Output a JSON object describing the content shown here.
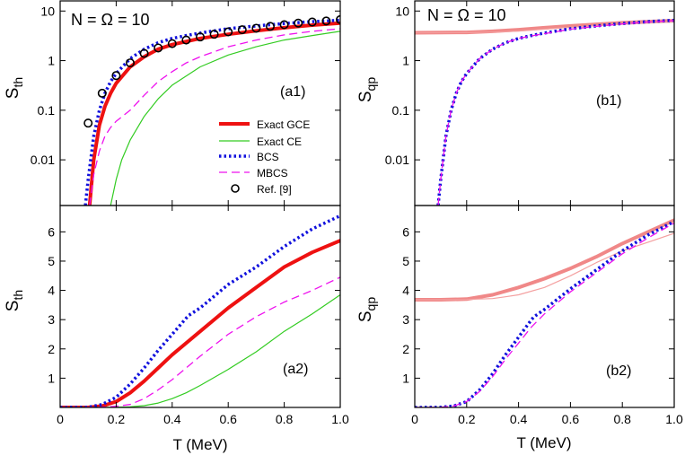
{
  "figure": {
    "xlabel": "T (MeV)",
    "x_ticks": [
      "0",
      "0.2",
      "0.4",
      "0.6",
      "0.8",
      "1.0"
    ],
    "x_tick_values": [
      0,
      0.2,
      0.4,
      0.6,
      0.8,
      1.0
    ]
  },
  "colors": {
    "exact_gce": "#ee1111",
    "exact_ce": "#33cc22",
    "bcs": "#1111dd",
    "mbcs": "#ee11ee",
    "ref": "#000000",
    "qp_thick": "#f08888",
    "qp_thin": "#f4a0a0"
  },
  "chart_data": [
    {
      "id": "a1",
      "type": "line",
      "title": "N = Ω = 10",
      "panel_label": "(a1)",
      "ylabel_main": "S",
      "ylabel_sub": "th",
      "yscale": "log",
      "ylim": [
        0.0012,
        16
      ],
      "xlim": [
        0,
        1.0
      ],
      "y_ticks": [
        10,
        1,
        0.1,
        0.01
      ],
      "y_tick_labels": [
        "10",
        "1",
        "0.1",
        "0.01"
      ],
      "legend": [
        {
          "label": "Exact GCE",
          "series": "exact_gce"
        },
        {
          "label": "Exact CE",
          "series": "exact_ce"
        },
        {
          "label": "BCS",
          "series": "bcs"
        },
        {
          "label": "MBCS",
          "series": "mbcs"
        },
        {
          "label": "Ref. [9]",
          "series": "ref"
        }
      ],
      "series": [
        {
          "name": "Exact GCE",
          "key": "exact_gce",
          "style": "solid-thick",
          "x": [
            0.105,
            0.12,
            0.14,
            0.16,
            0.18,
            0.2,
            0.25,
            0.3,
            0.35,
            0.4,
            0.5,
            0.6,
            0.7,
            0.8,
            0.9,
            1.0
          ],
          "y": [
            0.0012,
            0.01,
            0.05,
            0.12,
            0.22,
            0.35,
            0.75,
            1.2,
            1.7,
            2.1,
            2.8,
            3.4,
            4.0,
            4.6,
            5.2,
            5.7
          ]
        },
        {
          "name": "Exact CE",
          "key": "exact_ce",
          "style": "solid-thin",
          "x": [
            0.18,
            0.2,
            0.22,
            0.25,
            0.3,
            0.35,
            0.4,
            0.5,
            0.6,
            0.7,
            0.8,
            0.9,
            1.0
          ],
          "y": [
            0.0012,
            0.004,
            0.01,
            0.025,
            0.075,
            0.17,
            0.32,
            0.75,
            1.3,
            1.9,
            2.6,
            3.2,
            3.9
          ]
        },
        {
          "name": "BCS",
          "key": "bcs",
          "style": "dotted",
          "x": [
            0.09,
            0.1,
            0.12,
            0.14,
            0.16,
            0.18,
            0.2,
            0.25,
            0.3,
            0.35,
            0.4,
            0.45,
            0.5,
            0.6,
            0.7,
            0.8,
            0.9,
            1.0
          ],
          "y": [
            0.0012,
            0.004,
            0.03,
            0.1,
            0.22,
            0.38,
            0.55,
            1.1,
            1.7,
            2.3,
            2.8,
            3.2,
            3.6,
            4.4,
            5.0,
            5.6,
            6.1,
            6.5
          ]
        },
        {
          "name": "MBCS",
          "key": "mbcs",
          "style": "dashed",
          "x": [
            0.105,
            0.12,
            0.14,
            0.16,
            0.18,
            0.2,
            0.25,
            0.3,
            0.35,
            0.4,
            0.45,
            0.5,
            0.6,
            0.7,
            0.8,
            0.9,
            1.0
          ],
          "y": [
            0.0012,
            0.005,
            0.015,
            0.03,
            0.045,
            0.06,
            0.1,
            0.2,
            0.38,
            0.6,
            0.9,
            1.2,
            1.9,
            2.6,
            3.3,
            3.9,
            4.4
          ]
        },
        {
          "name": "Ref. [9]",
          "key": "ref",
          "style": "markers",
          "x": [
            0.1,
            0.15,
            0.2,
            0.25,
            0.3,
            0.35,
            0.4,
            0.45,
            0.5,
            0.55,
            0.6,
            0.65,
            0.7,
            0.75,
            0.8,
            0.85,
            0.9,
            0.95,
            1.0
          ],
          "y": [
            0.055,
            0.22,
            0.5,
            0.9,
            1.4,
            1.8,
            2.2,
            2.6,
            3.0,
            3.4,
            3.8,
            4.2,
            4.5,
            4.9,
            5.3,
            5.7,
            6.0,
            6.3,
            6.7
          ]
        }
      ]
    },
    {
      "id": "b1",
      "type": "line",
      "title": "N = Ω = 10",
      "panel_label": "(b1)",
      "ylabel_main": "S",
      "ylabel_sub": "qp",
      "yscale": "log",
      "ylim": [
        0.0012,
        16
      ],
      "xlim": [
        0,
        1.0
      ],
      "y_ticks": [
        10,
        1,
        0.1,
        0.01
      ],
      "y_tick_labels": [
        "10",
        "1",
        "0.1",
        "0.01"
      ],
      "series": [
        {
          "name": "Exact GCE (qp)",
          "key": "qp_thick",
          "style": "solid-thick",
          "x": [
            0,
            0.2,
            0.3,
            0.4,
            0.5,
            0.6,
            0.7,
            0.8,
            0.9,
            1.0
          ],
          "y": [
            3.65,
            3.7,
            3.9,
            4.2,
            4.6,
            5.0,
            5.4,
            5.8,
            6.1,
            6.4
          ]
        },
        {
          "name": "Exact CE (qp)",
          "key": "qp_thin",
          "style": "solid-thin",
          "x": [
            0,
            0.2,
            0.3,
            0.4,
            0.5,
            0.6,
            0.7,
            0.8,
            0.9,
            1.0
          ],
          "y": [
            3.62,
            3.66,
            3.75,
            3.95,
            4.3,
            4.7,
            5.05,
            5.4,
            5.7,
            6.0
          ]
        },
        {
          "name": "BCS",
          "key": "bcs",
          "style": "dotted",
          "x": [
            0.09,
            0.1,
            0.12,
            0.14,
            0.16,
            0.18,
            0.2,
            0.25,
            0.3,
            0.35,
            0.4,
            0.45,
            0.5,
            0.6,
            0.7,
            0.8,
            0.9,
            1.0
          ],
          "y": [
            0.0012,
            0.004,
            0.03,
            0.1,
            0.22,
            0.38,
            0.55,
            1.1,
            1.7,
            2.3,
            2.8,
            3.2,
            3.6,
            4.4,
            5.0,
            5.6,
            6.1,
            6.5
          ]
        },
        {
          "name": "MBCS",
          "key": "mbcs",
          "style": "dashed",
          "x": [
            0.09,
            0.1,
            0.12,
            0.14,
            0.16,
            0.18,
            0.2,
            0.25,
            0.3,
            0.35,
            0.4,
            0.45,
            0.5,
            0.6,
            0.7,
            0.8,
            0.9,
            1.0
          ],
          "y": [
            0.0012,
            0.004,
            0.03,
            0.1,
            0.22,
            0.38,
            0.55,
            1.1,
            1.7,
            2.3,
            2.8,
            3.15,
            3.5,
            4.3,
            4.9,
            5.5,
            6.0,
            6.4
          ]
        }
      ]
    },
    {
      "id": "a2",
      "type": "line",
      "panel_label": "(a2)",
      "ylabel_main": "S",
      "ylabel_sub": "th",
      "yscale": "linear",
      "ylim": [
        0,
        6.9
      ],
      "xlim": [
        0,
        1.0
      ],
      "y_ticks": [
        1,
        2,
        3,
        4,
        5,
        6
      ],
      "y_tick_labels": [
        "1",
        "2",
        "3",
        "4",
        "5",
        "6"
      ],
      "series": [
        {
          "name": "Exact GCE",
          "key": "exact_gce",
          "style": "solid-thick",
          "x": [
            0,
            0.1,
            0.15,
            0.2,
            0.25,
            0.3,
            0.35,
            0.4,
            0.5,
            0.6,
            0.7,
            0.8,
            0.9,
            1.0
          ],
          "y": [
            0,
            0.0,
            0.05,
            0.2,
            0.5,
            0.9,
            1.35,
            1.8,
            2.6,
            3.4,
            4.1,
            4.8,
            5.3,
            5.7
          ]
        },
        {
          "name": "Exact CE",
          "key": "exact_ce",
          "style": "solid-thin",
          "x": [
            0,
            0.15,
            0.2,
            0.25,
            0.3,
            0.35,
            0.4,
            0.45,
            0.5,
            0.6,
            0.7,
            0.8,
            0.9,
            1.0
          ],
          "y": [
            0,
            0,
            0.005,
            0.02,
            0.06,
            0.15,
            0.3,
            0.5,
            0.75,
            1.3,
            1.9,
            2.6,
            3.2,
            3.85
          ]
        },
        {
          "name": "BCS",
          "key": "bcs",
          "style": "dotted",
          "x": [
            0,
            0.1,
            0.15,
            0.2,
            0.25,
            0.3,
            0.35,
            0.4,
            0.45,
            0.46,
            0.5,
            0.6,
            0.7,
            0.8,
            0.9,
            1.0
          ],
          "y": [
            0,
            0.005,
            0.1,
            0.35,
            0.8,
            1.35,
            1.95,
            2.5,
            3.05,
            3.15,
            3.4,
            4.2,
            4.8,
            5.5,
            6.1,
            6.55
          ]
        },
        {
          "name": "MBCS",
          "key": "mbcs",
          "style": "dashed",
          "x": [
            0,
            0.15,
            0.2,
            0.25,
            0.3,
            0.35,
            0.4,
            0.45,
            0.5,
            0.6,
            0.7,
            0.8,
            0.9,
            1.0
          ],
          "y": [
            0,
            0.01,
            0.04,
            0.1,
            0.3,
            0.6,
            0.95,
            1.35,
            1.75,
            2.5,
            3.1,
            3.6,
            4.0,
            4.45
          ]
        }
      ]
    },
    {
      "id": "b2",
      "type": "line",
      "panel_label": "(b2)",
      "ylabel_main": "S",
      "ylabel_sub": "qp",
      "yscale": "linear",
      "ylim": [
        0,
        6.9
      ],
      "xlim": [
        0,
        1.0
      ],
      "y_ticks": [
        1,
        2,
        3,
        4,
        5,
        6
      ],
      "y_tick_labels": [
        "1",
        "2",
        "3",
        "4",
        "5",
        "6"
      ],
      "series": [
        {
          "name": "Exact GCE (qp)",
          "key": "qp_thick",
          "style": "solid-thick",
          "x": [
            0,
            0.1,
            0.2,
            0.3,
            0.4,
            0.5,
            0.6,
            0.7,
            0.8,
            0.9,
            1.0
          ],
          "y": [
            3.68,
            3.68,
            3.7,
            3.85,
            4.1,
            4.4,
            4.75,
            5.15,
            5.6,
            6.0,
            6.4
          ]
        },
        {
          "name": "Exact CE (qp)",
          "key": "qp_thin",
          "style": "solid-thin",
          "x": [
            0,
            0.1,
            0.2,
            0.3,
            0.35,
            0.4,
            0.5,
            0.6,
            0.7,
            0.8,
            0.9,
            1.0
          ],
          "y": [
            3.68,
            3.68,
            3.69,
            3.72,
            3.78,
            3.85,
            4.1,
            4.5,
            4.95,
            5.35,
            5.65,
            5.95
          ]
        },
        {
          "name": "BCS",
          "key": "bcs",
          "style": "dotted",
          "x": [
            0,
            0.1,
            0.15,
            0.2,
            0.25,
            0.3,
            0.35,
            0.4,
            0.45,
            0.46,
            0.5,
            0.6,
            0.7,
            0.8,
            0.9,
            1.0
          ],
          "y": [
            0,
            0.005,
            0.05,
            0.2,
            0.6,
            1.15,
            1.8,
            2.4,
            3.0,
            3.1,
            3.35,
            4.05,
            4.7,
            5.35,
            5.9,
            6.35
          ]
        },
        {
          "name": "MBCS",
          "key": "mbcs",
          "style": "dashed",
          "x": [
            0,
            0.1,
            0.15,
            0.2,
            0.25,
            0.3,
            0.35,
            0.4,
            0.45,
            0.5,
            0.6,
            0.7,
            0.8,
            0.9,
            1.0
          ],
          "y": [
            0,
            0.005,
            0.05,
            0.2,
            0.55,
            1.05,
            1.65,
            2.2,
            2.75,
            3.2,
            3.95,
            4.6,
            5.25,
            5.8,
            6.3
          ]
        }
      ]
    }
  ]
}
